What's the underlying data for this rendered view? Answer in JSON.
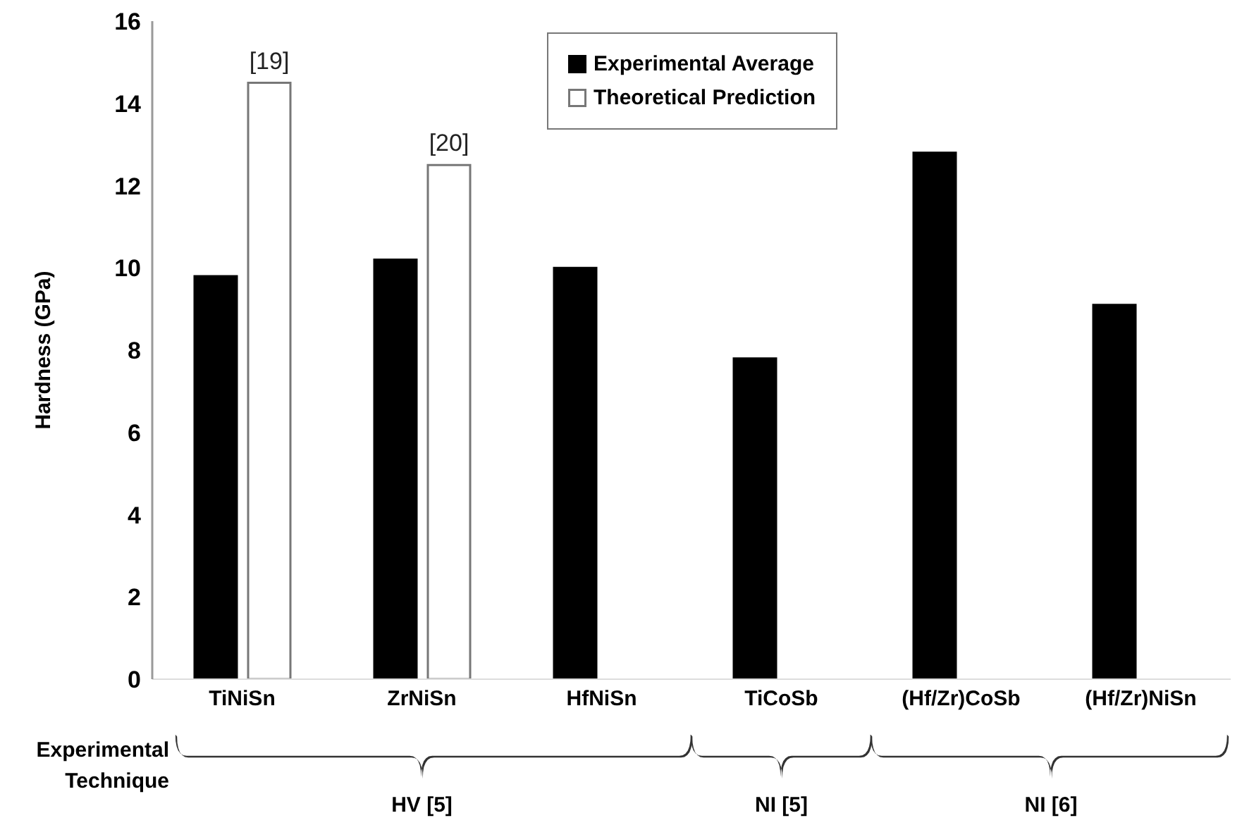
{
  "chart_data": {
    "type": "bar",
    "ylabel": "Hardness (GPa)",
    "categories": [
      "TiNiSn",
      "ZrNiSn",
      "HfNiSn",
      "TiCoSb",
      "(Hf/Zr)CoSb",
      "(Hf/Zr)NiSn"
    ],
    "series": [
      {
        "name": "Experimental Average",
        "color": "#000000",
        "values": [
          9.8,
          10.2,
          10.0,
          7.8,
          12.8,
          9.1
        ]
      },
      {
        "name": "Theoretical Prediction",
        "color": "#ffffff",
        "values": [
          14.5,
          12.5,
          null,
          null,
          null,
          null
        ]
      }
    ],
    "ylim": [
      0,
      16
    ],
    "yticks": [
      0,
      2,
      4,
      6,
      8,
      10,
      12,
      14,
      16
    ],
    "grid": false,
    "legend": "top",
    "annotations": [
      {
        "text": "[19]",
        "x": "TiNiSn",
        "y": 14.5
      },
      {
        "text": "[20]",
        "x": "ZrNiSn",
        "y": 12.5
      },
      "Experimental Technique",
      "HV [5]",
      "NI [5]",
      "NI [6]"
    ]
  }
}
